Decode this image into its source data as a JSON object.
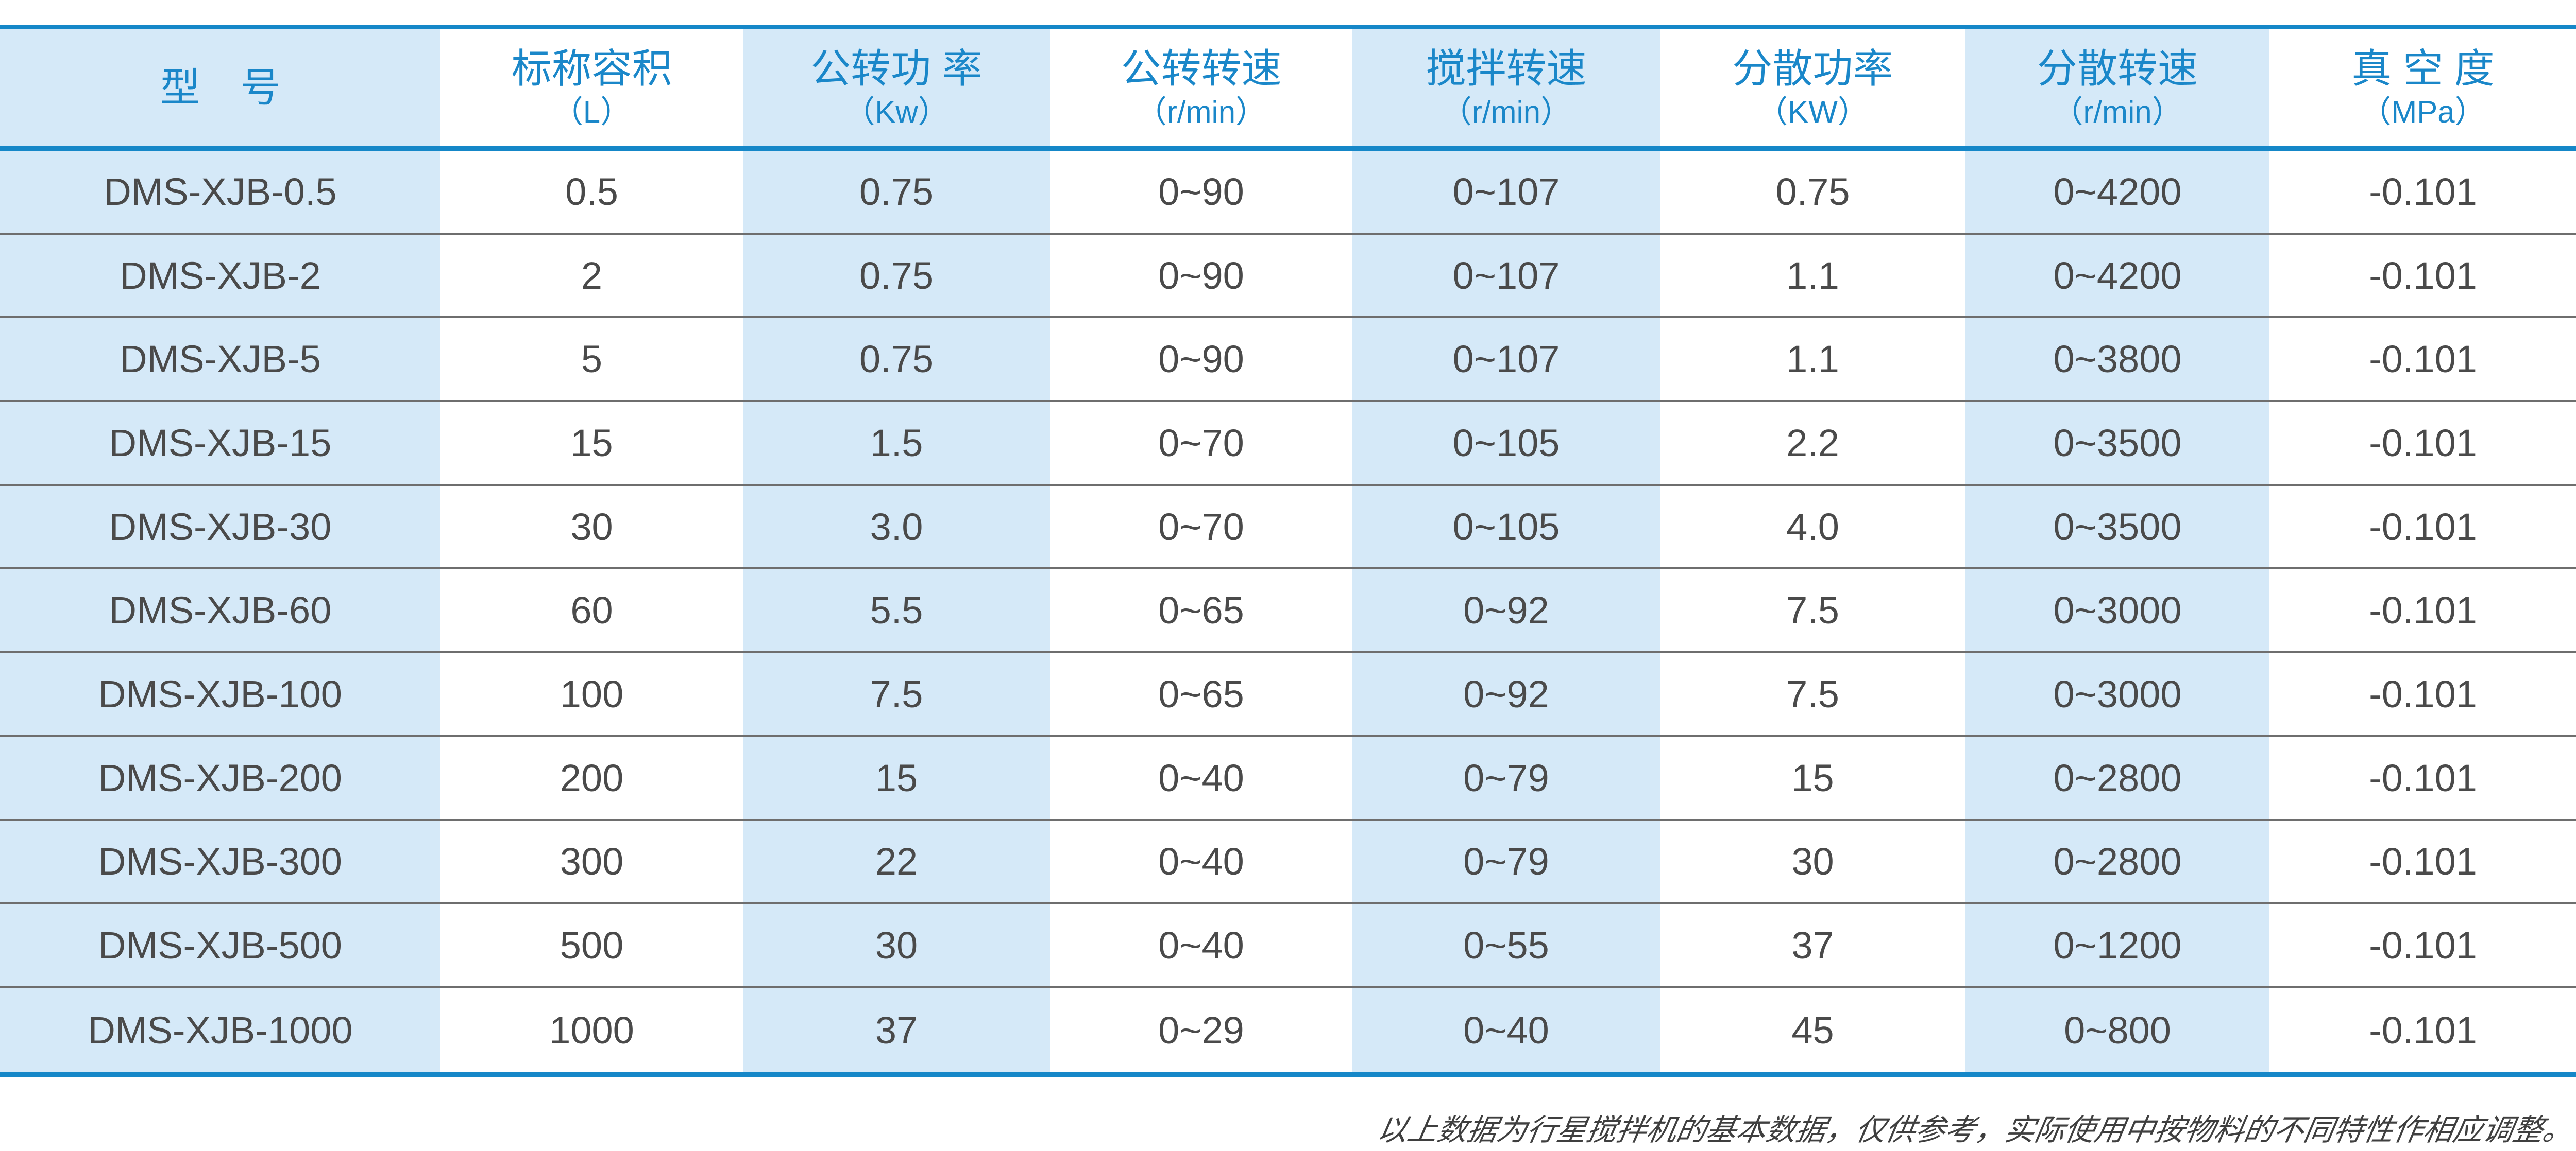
{
  "page": {
    "background": "#ffffff"
  },
  "table": {
    "colors": {
      "border_blue": "#1587c8",
      "light_blue_column": "#d5e9f8",
      "header_text_blue": "#1a87c9",
      "body_text": "#4a4a4a",
      "row_separator": "#6e6e6e"
    },
    "columns": [
      {
        "title": "型　号",
        "unit": ""
      },
      {
        "title": "标称容积",
        "unit": "（L）"
      },
      {
        "title": "公转功 率",
        "unit": "（Kw）"
      },
      {
        "title": "公转转速",
        "unit": "（r/min）"
      },
      {
        "title": "搅拌转速",
        "unit": "（r/min）"
      },
      {
        "title": "分散功率",
        "unit": "（KW）"
      },
      {
        "title": "分散转速",
        "unit": "（r/min）"
      },
      {
        "title": "真 空 度",
        "unit": "（MPa）"
      }
    ],
    "rows": [
      [
        "DMS-XJB-0.5",
        "0.5",
        "0.75",
        "0~90",
        "0~107",
        "0.75",
        "0~4200",
        "-0.101"
      ],
      [
        "DMS-XJB-2",
        "2",
        "0.75",
        "0~90",
        "0~107",
        "1.1",
        "0~4200",
        "-0.101"
      ],
      [
        "DMS-XJB-5",
        "5",
        "0.75",
        "0~90",
        "0~107",
        "1.1",
        "0~3800",
        "-0.101"
      ],
      [
        "DMS-XJB-15",
        "15",
        "1.5",
        "0~70",
        "0~105",
        "2.2",
        "0~3500",
        "-0.101"
      ],
      [
        "DMS-XJB-30",
        "30",
        "3.0",
        "0~70",
        "0~105",
        "4.0",
        "0~3500",
        "-0.101"
      ],
      [
        "DMS-XJB-60",
        "60",
        "5.5",
        "0~65",
        "0~92",
        "7.5",
        "0~3000",
        "-0.101"
      ],
      [
        "DMS-XJB-100",
        "100",
        "7.5",
        "0~65",
        "0~92",
        "7.5",
        "0~3000",
        "-0.101"
      ],
      [
        "DMS-XJB-200",
        "200",
        "15",
        "0~40",
        "0~79",
        "15",
        "0~2800",
        "-0.101"
      ],
      [
        "DMS-XJB-300",
        "300",
        "22",
        "0~40",
        "0~79",
        "30",
        "0~2800",
        "-0.101"
      ],
      [
        "DMS-XJB-500",
        "500",
        "30",
        "0~40",
        "0~55",
        "37",
        "0~1200",
        "-0.101"
      ],
      [
        "DMS-XJB-1000",
        "1000",
        "37",
        "0~29",
        "0~40",
        "45",
        "0~800",
        "-0.101"
      ]
    ]
  },
  "footer": {
    "note": "以上数据为行星搅拌机的基本数据，仅供参考，实际使用中按物料的不同特性作相应调整。"
  }
}
